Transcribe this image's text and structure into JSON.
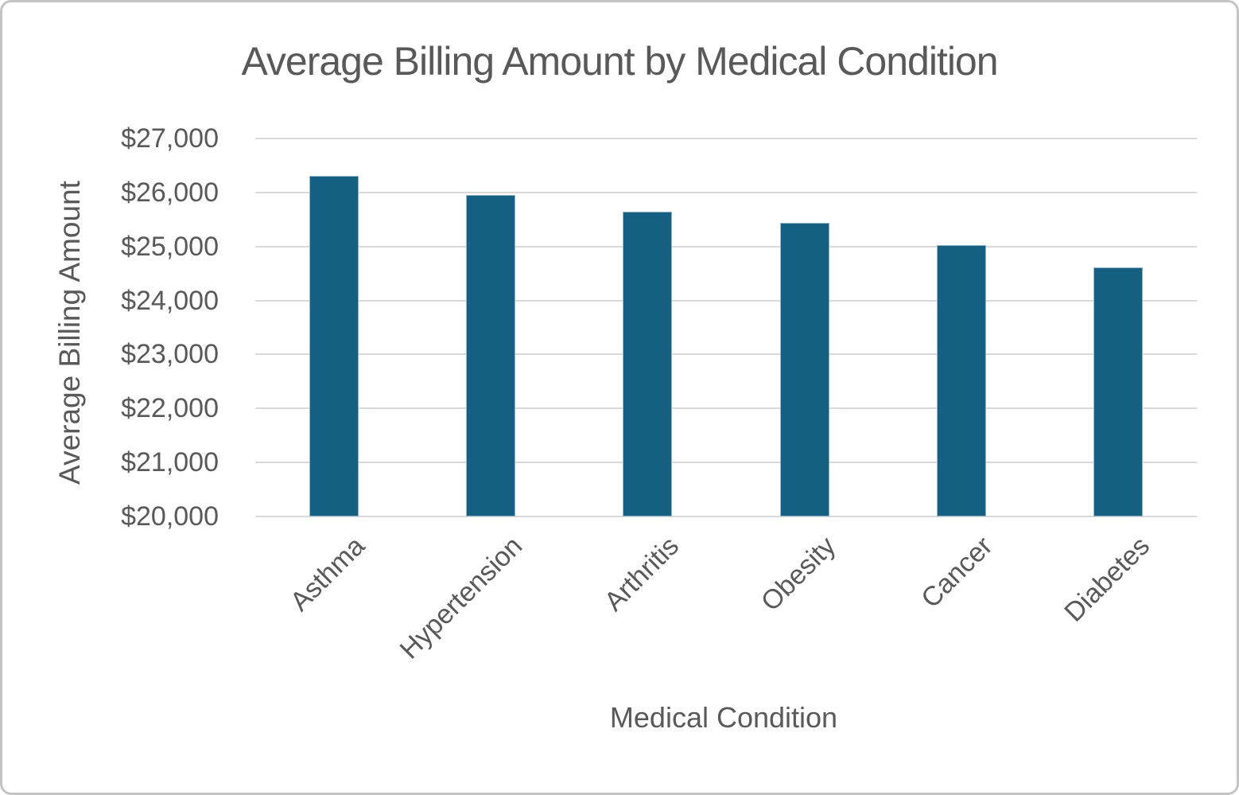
{
  "window": {
    "background": "#ffffff",
    "frame_border_color": "#c4c4c4"
  },
  "chart_data": {
    "type": "bar",
    "title": "Average Billing Amount by Medical Condition",
    "xlabel": "Medical Condition",
    "ylabel": "Average Billing Amount",
    "categories": [
      "Asthma",
      "Hypertension",
      "Arthritis",
      "Obesity",
      "Cancer",
      "Diabetes"
    ],
    "values": [
      26310,
      25960,
      25640,
      25440,
      25030,
      24620
    ],
    "ylim": [
      20000,
      27000
    ],
    "ytick_step": 1000,
    "ytick_labels": [
      "$20,000",
      "$21,000",
      "$22,000",
      "$23,000",
      "$24,000",
      "$25,000",
      "$26,000",
      "$27,000"
    ],
    "grid": true,
    "legend": "none",
    "colors": {
      "bar": "#156082",
      "gridline": "#d9d9d9",
      "text": "#595959"
    }
  }
}
